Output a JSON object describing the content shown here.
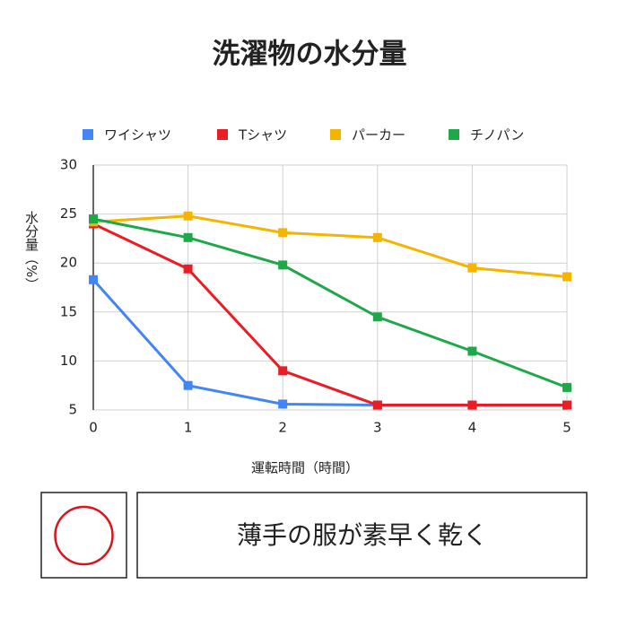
{
  "chart_data": {
    "type": "line",
    "title": "洗濯物の水分量",
    "x": [
      0,
      1,
      2,
      3,
      4,
      5
    ],
    "series": [
      {
        "name": "ワイシャツ",
        "color": "#4285f4",
        "values": [
          18.3,
          7.5,
          5.6,
          5.5,
          5.5,
          5.5
        ]
      },
      {
        "name": "Tシャツ",
        "color": "#ea1c24",
        "values": [
          24.0,
          19.4,
          9.0,
          5.5,
          5.5,
          5.5
        ]
      },
      {
        "name": "パーカー",
        "color": "#f4b400",
        "values": [
          24.2,
          24.8,
          23.1,
          22.6,
          19.5,
          18.6
        ]
      },
      {
        "name": "チノパン",
        "color": "#1ea84a",
        "values": [
          24.5,
          22.6,
          19.8,
          14.5,
          11.0,
          7.3
        ]
      }
    ],
    "xlim": [
      0,
      5
    ],
    "xticks": [
      0,
      1,
      2,
      3,
      4,
      5
    ],
    "ylim": [
      5,
      30
    ],
    "yticks": [
      5,
      10,
      15,
      20,
      25,
      30
    ],
    "grid": true,
    "legend": "top",
    "x_label": "運転時間（時間）",
    "y_label": "水分量（%）",
    "result_text": "薄手の服が素早く乾く"
  }
}
